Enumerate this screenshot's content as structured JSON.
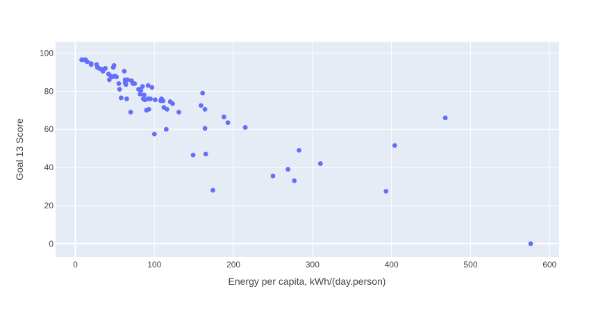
{
  "chart_data": {
    "type": "scatter",
    "xlabel": "Energy per capita, kWh/(day.person)",
    "ylabel": "Goal 13 Score",
    "xlim": [
      -25,
      612
    ],
    "ylim": [
      -7,
      106
    ],
    "xticks": [
      0,
      100,
      200,
      300,
      400,
      500,
      600
    ],
    "yticks": [
      0,
      20,
      40,
      60,
      80,
      100
    ],
    "grid": true,
    "legend": "none",
    "colors": {
      "marker": "#636efa",
      "plot_bg": "#e5ecf6",
      "grid": "#ffffff",
      "text": "#444444"
    },
    "series": [
      {
        "x": [
          8,
          11,
          13,
          15,
          20,
          20,
          27,
          28,
          30,
          33,
          35,
          38,
          42,
          43,
          45,
          47,
          48,
          49,
          50,
          52,
          55,
          56,
          58,
          62,
          63,
          63,
          64,
          65,
          66,
          70,
          71,
          73,
          75,
          80,
          82,
          83,
          85,
          86,
          87,
          88,
          90,
          92,
          92,
          93,
          95,
          97,
          100,
          101,
          108,
          109,
          111,
          112,
          115,
          116,
          120,
          123,
          131,
          149,
          159,
          161,
          164,
          164,
          165,
          174,
          188,
          193,
          215,
          250,
          269,
          277,
          283,
          310,
          393,
          404,
          468,
          576
        ],
        "y": [
          96.5,
          96.5,
          96.5,
          95.5,
          94.5,
          94,
          94,
          92.5,
          92,
          91.5,
          90.5,
          92,
          89,
          86,
          88,
          87.5,
          92.5,
          93.5,
          88,
          87.5,
          84,
          81,
          76.5,
          90.5,
          86,
          84.5,
          83.5,
          76,
          86,
          69,
          85.5,
          84,
          84,
          81,
          78.5,
          80.5,
          82.5,
          76,
          78,
          75.5,
          70,
          83,
          76,
          70.5,
          76,
          82,
          57.5,
          75.5,
          75,
          76,
          75,
          71.5,
          60,
          70.5,
          74.5,
          73.5,
          69,
          46.5,
          72.5,
          79,
          70.5,
          60.5,
          47,
          28,
          66.5,
          63.5,
          61,
          35.5,
          39,
          33,
          49,
          42,
          27.5,
          51.5,
          66,
          0
        ]
      }
    ]
  }
}
